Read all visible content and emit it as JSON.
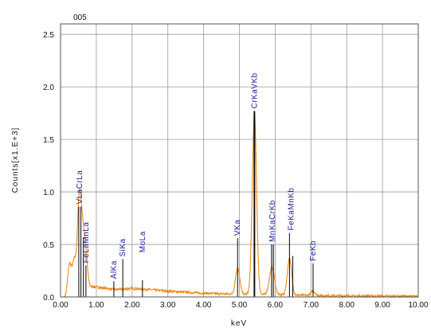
{
  "chart_data": {
    "type": "line",
    "title": "005",
    "xlabel": "keV",
    "ylabel": "Counts[x1.E+3]",
    "xlim": [
      0,
      10
    ],
    "ylim": [
      0,
      2.6
    ],
    "x_ticks": [
      "0.00",
      "1.00",
      "2.00",
      "3.00",
      "4.00",
      "5.00",
      "6.00",
      "7.00",
      "8.00",
      "9.00",
      "10.00"
    ],
    "y_ticks": [
      "0.0",
      "0.5",
      "1.0",
      "1.5",
      "2.0",
      "2.5"
    ],
    "grid": true,
    "series_color": "#f08c1a",
    "marker_color": "#000000",
    "label_color": "#1a1a9a",
    "spectrum_peaks": [
      {
        "center": 0.25,
        "height": 0.28,
        "width": 0.05
      },
      {
        "center": 0.38,
        "height": 0.28,
        "width": 0.05
      },
      {
        "center": 0.51,
        "height": 0.66,
        "width": 0.05
      },
      {
        "center": 0.57,
        "height": 0.42,
        "width": 0.05
      },
      {
        "center": 0.64,
        "height": 0.35,
        "width": 0.05
      },
      {
        "center": 0.71,
        "height": 0.25,
        "width": 0.05
      },
      {
        "center": 4.95,
        "height": 0.25,
        "width": 0.06
      },
      {
        "center": 5.42,
        "height": 1.72,
        "width": 0.06
      },
      {
        "center": 5.9,
        "height": 0.22,
        "width": 0.07
      },
      {
        "center": 5.95,
        "height": 0.06,
        "width": 0.05
      },
      {
        "center": 6.4,
        "height": 0.35,
        "width": 0.06
      },
      {
        "center": 7.06,
        "height": 0.04,
        "width": 0.06
      }
    ],
    "background_level": [
      [
        0.0,
        0.0
      ],
      [
        0.15,
        0.0
      ],
      [
        0.3,
        0.05
      ],
      [
        0.9,
        0.1
      ],
      [
        1.5,
        0.07
      ],
      [
        2.0,
        0.08
      ],
      [
        2.5,
        0.07
      ],
      [
        3.0,
        0.055
      ],
      [
        4.0,
        0.035
      ],
      [
        5.0,
        0.025
      ],
      [
        6.0,
        0.02
      ],
      [
        7.0,
        0.015
      ],
      [
        8.0,
        0.01
      ],
      [
        9.0,
        0.008
      ],
      [
        10.0,
        0.005
      ]
    ],
    "peak_markers": [
      {
        "label": "VLa",
        "x": 0.51,
        "y": 0.86
      },
      {
        "label": "CrLa",
        "x": 0.57,
        "y": 0.86
      },
      {
        "label": "FeLa",
        "x": 0.71,
        "y": 0.3
      },
      {
        "label": "MnLa",
        "x": 0.64,
        "y": 0.56
      },
      {
        "label": "AlKa",
        "x": 1.49,
        "y": 0.15
      },
      {
        "label": "SiKa",
        "x": 1.74,
        "y": 0.36
      },
      {
        "label": "MoLa",
        "x": 2.29,
        "y": 0.16
      },
      {
        "label": "VKa",
        "x": 4.95,
        "y": 0.56
      },
      {
        "label": "CrKa",
        "x": 5.41,
        "y": 1.77
      },
      {
        "label": "VKb",
        "x": 5.43,
        "y": 1.77
      },
      {
        "label": "MnKa",
        "x": 5.9,
        "y": 0.5
      },
      {
        "label": "CrKb",
        "x": 5.95,
        "y": 0.5
      },
      {
        "label": "FeKa",
        "x": 6.4,
        "y": 0.61
      },
      {
        "label": "MnKb",
        "x": 6.49,
        "y": 0.39
      },
      {
        "label": "FeKb",
        "x": 7.06,
        "y": 0.32
      }
    ],
    "label_groups": [
      {
        "text": "VLaCrLa",
        "x": 0.54,
        "y": 0.86
      },
      {
        "text": "FeLaMnLa",
        "x": 0.71,
        "y": 0.3
      },
      {
        "text": "AlKa",
        "x": 1.49,
        "y": 0.15
      },
      {
        "text": "SiKa",
        "x": 1.74,
        "y": 0.36
      },
      {
        "text": "MoLa",
        "x": 2.29,
        "y": 0.4
      },
      {
        "text": "VKa",
        "x": 4.95,
        "y": 0.56
      },
      {
        "text": "CrKaVKb",
        "x": 5.42,
        "y": 1.77
      },
      {
        "text": "MnKaCrKb",
        "x": 5.92,
        "y": 0.5
      },
      {
        "text": "FeKaMnKb",
        "x": 6.45,
        "y": 0.61
      },
      {
        "text": "FeKb",
        "x": 7.06,
        "y": 0.32
      }
    ]
  }
}
